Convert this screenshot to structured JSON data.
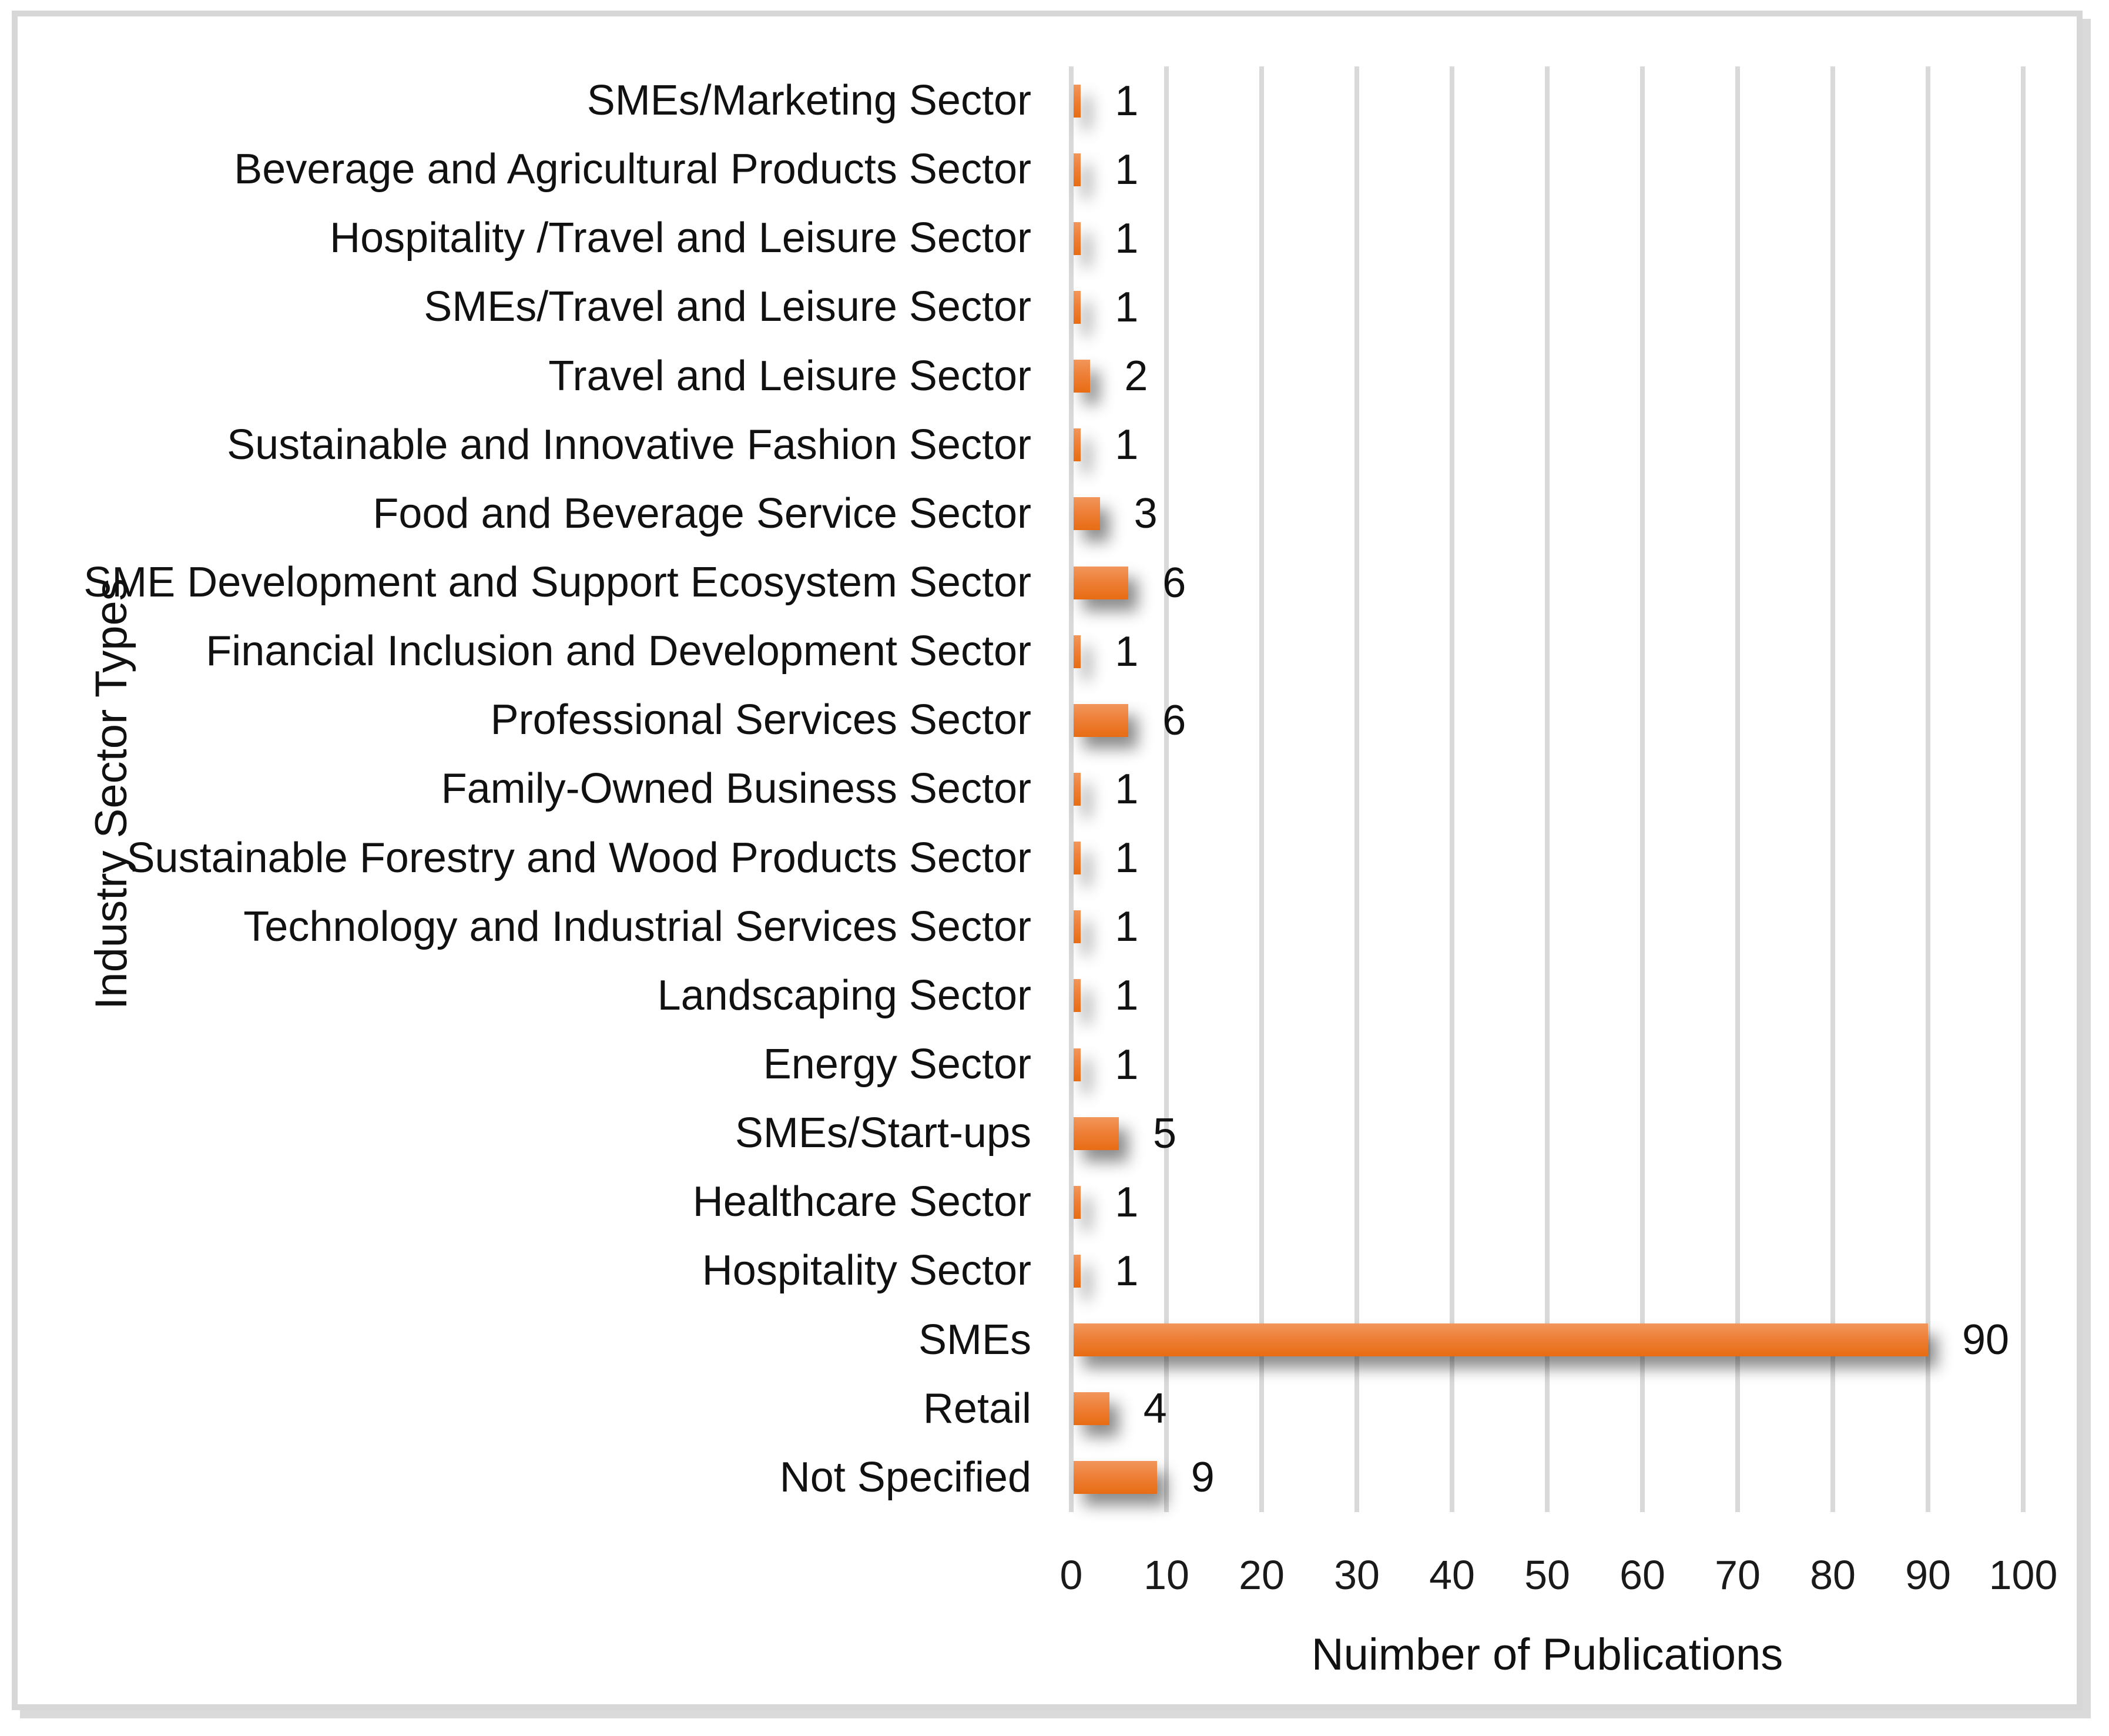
{
  "chart_data": {
    "type": "bar",
    "orientation": "horizontal",
    "title": "",
    "xlabel": "Nuimber of Publications",
    "ylabel": "Industry Sector Types",
    "categories": [
      "SMEs/Marketing Sector",
      "Beverage and Agricultural Products Sector",
      "Hospitality /Travel and Leisure Sector",
      "SMEs/Travel and Leisure Sector",
      "Travel and Leisure Sector",
      "Sustainable and Innovative Fashion Sector",
      "Food and Beverage Service Sector",
      "SME Development and Support Ecosystem Sector",
      "Financial Inclusion and Development Sector",
      "Professional Services Sector",
      "Family-Owned Business Sector",
      "Sustainable Forestry and Wood Products Sector",
      "Technology and Industrial Services Sector",
      "Landscaping Sector",
      "Energy Sector",
      "SMEs/Start-ups",
      "Healthcare Sector",
      "Hospitality Sector",
      "SMEs",
      "Retail",
      "Not Specified"
    ],
    "values": [
      1,
      1,
      1,
      1,
      2,
      1,
      3,
      6,
      1,
      6,
      1,
      1,
      1,
      1,
      1,
      5,
      1,
      1,
      90,
      4,
      9
    ],
    "xlim": [
      0,
      100
    ],
    "xticks": [
      0,
      10,
      20,
      30,
      40,
      50,
      60,
      70,
      80,
      90,
      100
    ],
    "grid": "vertical",
    "legend_position": "none",
    "data_labels": "outside-end",
    "colors": {
      "bar_gradient_top": "#f2965b",
      "bar_gradient_mid": "#ee8038",
      "bar_gradient_bottom": "#e86c13",
      "bar_base": "#ed7d31",
      "gridline": "#d9d9d9",
      "frame_border": "#d7d7d7",
      "text": "#111111"
    }
  }
}
